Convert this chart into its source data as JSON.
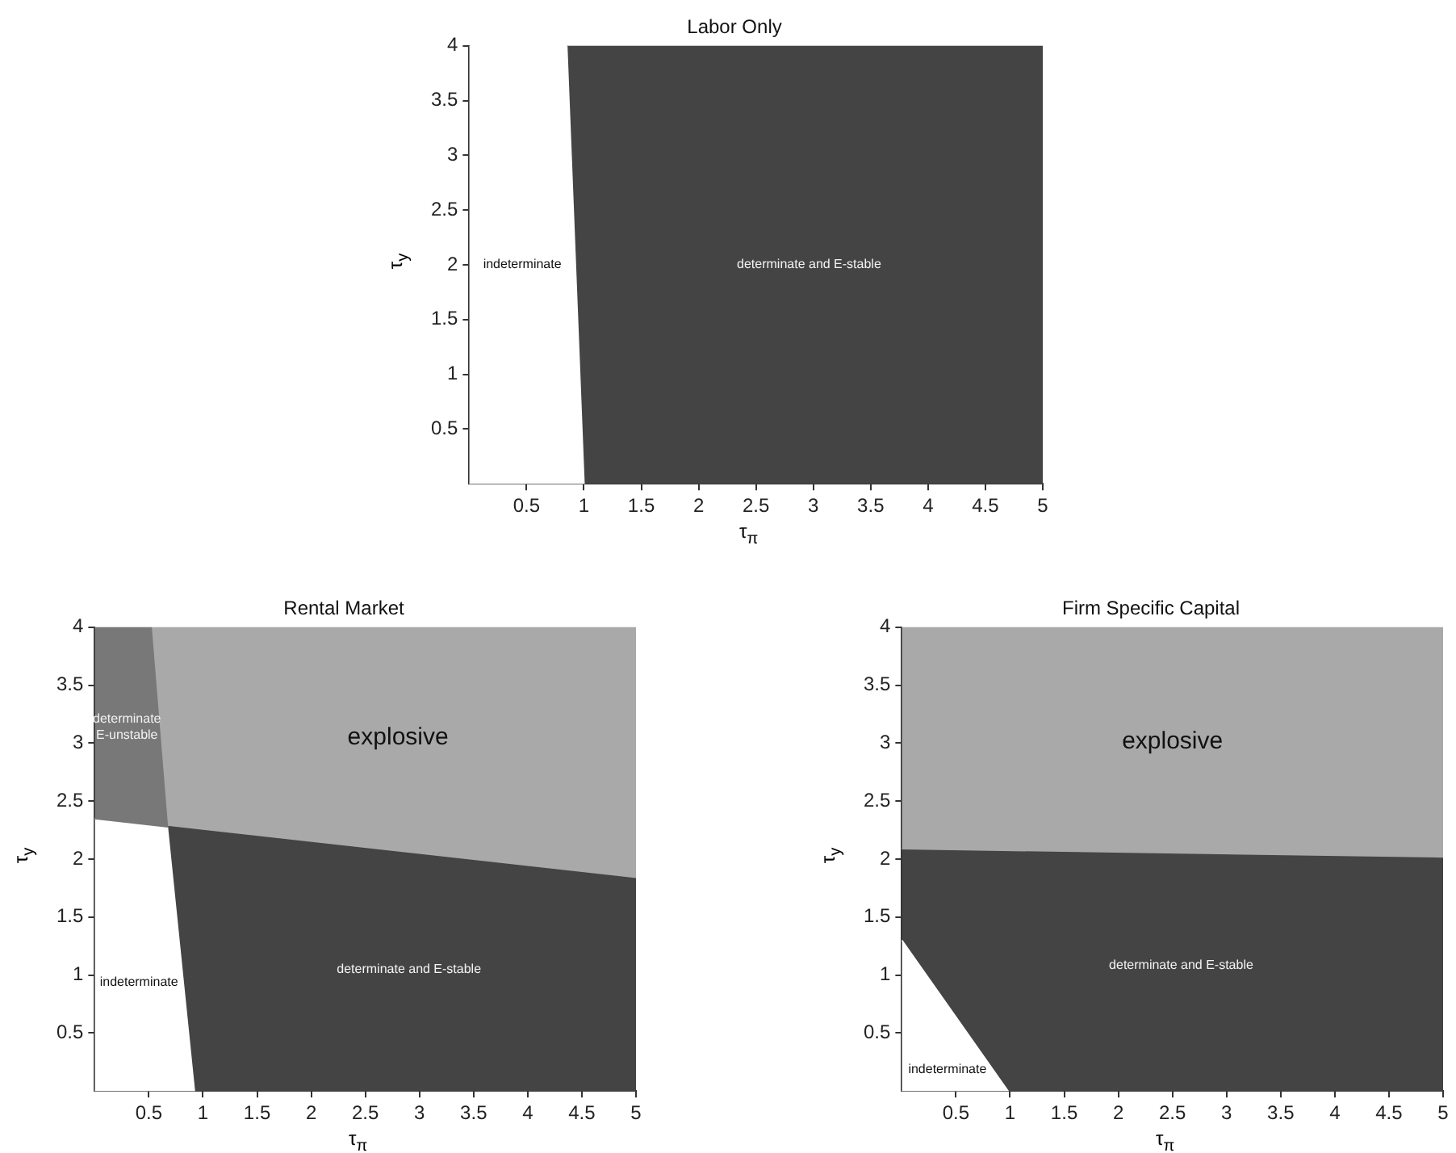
{
  "chart_data": [
    {
      "type": "area",
      "title": "Labor Only",
      "xlabel": "τ$_{π}$",
      "ylabel": "τ$_{y}$",
      "xlim": [
        0,
        5
      ],
      "ylim": [
        0,
        4
      ],
      "xticks": [
        0.5,
        1,
        1.5,
        2,
        2.5,
        3,
        3.5,
        4,
        4.5,
        5
      ],
      "yticks": [
        0.5,
        1,
        1.5,
        2,
        2.5,
        3,
        3.5,
        4
      ],
      "series": [
        {
          "name": "indeterminate",
          "color": "#ffffff",
          "x": [
            0,
            1.0,
            0.85,
            0
          ],
          "values": [
            0,
            0,
            4,
            4
          ]
        },
        {
          "name": "determinate and E-stable",
          "color": "#444444",
          "x": [
            1.0,
            5,
            5,
            0.85
          ],
          "values": [
            0,
            0,
            4,
            4
          ]
        }
      ]
    },
    {
      "type": "area",
      "title": "Rental Market",
      "xlabel": "τ$_{π}$",
      "ylabel": "τ$_{y}$",
      "xlim": [
        0,
        5
      ],
      "ylim": [
        0,
        4
      ],
      "xticks": [
        0.5,
        1,
        1.5,
        2,
        2.5,
        3,
        3.5,
        4,
        4.5,
        5
      ],
      "yticks": [
        0.5,
        1,
        1.5,
        2,
        2.5,
        3,
        3.5,
        4
      ],
      "series": [
        {
          "name": "determinate\nE-unstable",
          "color": "#787878",
          "x": [
            0,
            0.67,
            0.52,
            0
          ],
          "values": [
            2.35,
            2.28,
            4,
            4
          ]
        },
        {
          "name": "indeterminate",
          "color": "#ffffff",
          "x": [
            0,
            0.92,
            0.67,
            0
          ],
          "values": [
            0,
            0,
            2.28,
            2.35
          ]
        },
        {
          "name": "determinate and E-stable",
          "color": "#444444",
          "x": [
            0.92,
            5,
            5,
            0.67
          ],
          "values": [
            0,
            0,
            1.83,
            2.28
          ]
        },
        {
          "name": "explosive",
          "color": "#a9a9a9",
          "x": [
            0.52,
            5,
            5,
            0.67
          ],
          "values": [
            4,
            4,
            1.83,
            2.28
          ]
        }
      ]
    },
    {
      "type": "area",
      "title": "Firm Specific Capital",
      "xlabel": "τ$_{π}$",
      "ylabel": "τ$_{y}$",
      "xlim": [
        0,
        5
      ],
      "ylim": [
        0,
        4
      ],
      "xticks": [
        0.5,
        1,
        1.5,
        2,
        2.5,
        3,
        3.5,
        4,
        4.5,
        5
      ],
      "yticks": [
        0.5,
        1,
        1.5,
        2,
        2.5,
        3,
        3.5,
        4
      ],
      "series": [
        {
          "name": "explosive",
          "color": "#a9a9a9",
          "x": [
            0,
            5,
            5,
            0
          ],
          "values": [
            2.09,
            2.02,
            4,
            4
          ]
        },
        {
          "name": "indeterminate",
          "color": "#ffffff",
          "x": [
            0,
            0.98,
            0
          ],
          "values": [
            0,
            0,
            1.3
          ]
        },
        {
          "name": "determinate and E-stable",
          "color": "#444444",
          "x": [
            0,
            0.98,
            5,
            5,
            0
          ],
          "values": [
            1.3,
            0,
            0,
            2.02,
            2.09
          ]
        }
      ]
    }
  ]
}
